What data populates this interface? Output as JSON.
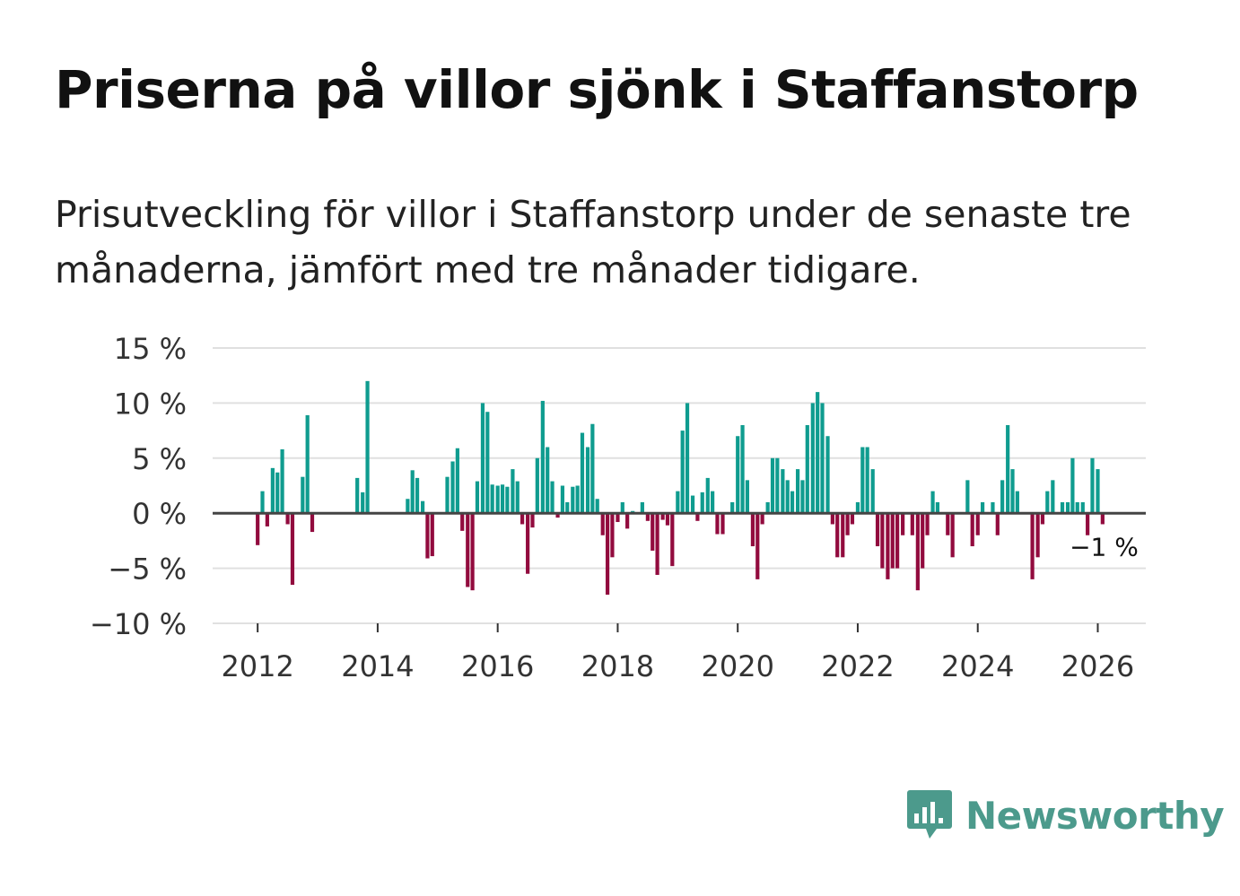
{
  "title": "Priserna på villor sjönk i Staffanstorp",
  "subtitle": "Prisutveckling för villor i Staffanstorp under de senaste tre månaderna, jämfört med tre månader tidigare.",
  "brand": {
    "name": "Newsworthy",
    "icon": "bar-chart-speech-bubble-icon",
    "color": "#4c9a8c"
  },
  "colors": {
    "positive": "#0f9c8f",
    "negative": "#920b3e",
    "zero_line": "#444444",
    "grid": "#e0e0e0"
  },
  "chart_data": {
    "type": "bar",
    "title": "Priserna på villor sjönk i Staffanstorp",
    "xlabel": "",
    "ylabel": "",
    "unit": "%",
    "ylim": [
      -10,
      15
    ],
    "yticks": [
      15,
      10,
      5,
      0,
      -5,
      -10
    ],
    "ytick_labels": [
      "15 %",
      "10 %",
      "5 %",
      "0 %",
      "−5 %",
      "−10 %"
    ],
    "xlim": [
      2011.25,
      2026.8
    ],
    "xticks": [
      2012,
      2014,
      2016,
      2018,
      2020,
      2022,
      2024,
      2026
    ],
    "xtick_labels": [
      "2012",
      "2014",
      "2016",
      "2018",
      "2020",
      "2022",
      "2024",
      "2026"
    ],
    "grid": true,
    "last_value_label": "−1 %",
    "series": [
      {
        "name": "Prisutveckling",
        "points": [
          {
            "x": 2012.0,
            "y": -2.9
          },
          {
            "x": 2012.08,
            "y": 2.0
          },
          {
            "x": 2012.16,
            "y": -1.2
          },
          {
            "x": 2012.25,
            "y": 4.1
          },
          {
            "x": 2012.33,
            "y": 3.7
          },
          {
            "x": 2012.41,
            "y": 5.8
          },
          {
            "x": 2012.5,
            "y": -1.0
          },
          {
            "x": 2012.58,
            "y": -6.5
          },
          {
            "x": 2012.75,
            "y": 3.3
          },
          {
            "x": 2012.83,
            "y": 8.9
          },
          {
            "x": 2012.91,
            "y": -1.7
          },
          {
            "x": 2013.66,
            "y": 3.2
          },
          {
            "x": 2013.75,
            "y": 1.9
          },
          {
            "x": 2013.83,
            "y": 12.0
          },
          {
            "x": 2014.5,
            "y": 1.3
          },
          {
            "x": 2014.58,
            "y": 3.9
          },
          {
            "x": 2014.66,
            "y": 3.2
          },
          {
            "x": 2014.75,
            "y": 1.1
          },
          {
            "x": 2014.83,
            "y": -4.1
          },
          {
            "x": 2014.91,
            "y": -3.9
          },
          {
            "x": 2015.16,
            "y": 3.3
          },
          {
            "x": 2015.25,
            "y": 4.7
          },
          {
            "x": 2015.33,
            "y": 5.9
          },
          {
            "x": 2015.41,
            "y": -1.6
          },
          {
            "x": 2015.5,
            "y": -6.7
          },
          {
            "x": 2015.58,
            "y": -7.0
          },
          {
            "x": 2015.66,
            "y": 2.9
          },
          {
            "x": 2015.75,
            "y": 10.0
          },
          {
            "x": 2015.83,
            "y": 9.2
          },
          {
            "x": 2015.91,
            "y": 2.6
          },
          {
            "x": 2016.0,
            "y": 2.5
          },
          {
            "x": 2016.08,
            "y": 2.6
          },
          {
            "x": 2016.16,
            "y": 2.4
          },
          {
            "x": 2016.25,
            "y": 4.0
          },
          {
            "x": 2016.33,
            "y": 2.9
          },
          {
            "x": 2016.41,
            "y": -1.0
          },
          {
            "x": 2016.5,
            "y": -5.5
          },
          {
            "x": 2016.58,
            "y": -1.3
          },
          {
            "x": 2016.66,
            "y": 5.0
          },
          {
            "x": 2016.75,
            "y": 10.2
          },
          {
            "x": 2016.83,
            "y": 6.0
          },
          {
            "x": 2016.91,
            "y": 2.9
          },
          {
            "x": 2017.0,
            "y": -0.4
          },
          {
            "x": 2017.08,
            "y": 2.5
          },
          {
            "x": 2017.16,
            "y": 1.0
          },
          {
            "x": 2017.25,
            "y": 2.4
          },
          {
            "x": 2017.33,
            "y": 2.5
          },
          {
            "x": 2017.41,
            "y": 7.3
          },
          {
            "x": 2017.5,
            "y": 6.0
          },
          {
            "x": 2017.58,
            "y": 8.1
          },
          {
            "x": 2017.66,
            "y": 1.3
          },
          {
            "x": 2017.75,
            "y": -2.0
          },
          {
            "x": 2017.83,
            "y": -7.4
          },
          {
            "x": 2017.91,
            "y": -4.0
          },
          {
            "x": 2018.0,
            "y": -0.8
          },
          {
            "x": 2018.08,
            "y": 1.0
          },
          {
            "x": 2018.16,
            "y": -1.4
          },
          {
            "x": 2018.25,
            "y": 0.2
          },
          {
            "x": 2018.41,
            "y": 1.0
          },
          {
            "x": 2018.5,
            "y": -0.7
          },
          {
            "x": 2018.58,
            "y": -3.4
          },
          {
            "x": 2018.66,
            "y": -5.6
          },
          {
            "x": 2018.75,
            "y": -0.6
          },
          {
            "x": 2018.83,
            "y": -1.1
          },
          {
            "x": 2018.91,
            "y": -4.8
          },
          {
            "x": 2019.0,
            "y": 2.0
          },
          {
            "x": 2019.08,
            "y": 7.5
          },
          {
            "x": 2019.16,
            "y": 10.0
          },
          {
            "x": 2019.25,
            "y": 1.6
          },
          {
            "x": 2019.33,
            "y": -0.7
          },
          {
            "x": 2019.41,
            "y": 1.9
          },
          {
            "x": 2019.5,
            "y": 3.2
          },
          {
            "x": 2019.58,
            "y": 2.0
          },
          {
            "x": 2019.66,
            "y": -1.9
          },
          {
            "x": 2019.75,
            "y": -1.9
          },
          {
            "x": 2019.91,
            "y": 1.0
          },
          {
            "x": 2020.0,
            "y": 7.0
          },
          {
            "x": 2020.08,
            "y": 8.0
          },
          {
            "x": 2020.16,
            "y": 3.0
          },
          {
            "x": 2020.25,
            "y": -3.0
          },
          {
            "x": 2020.33,
            "y": -6.0
          },
          {
            "x": 2020.41,
            "y": -1.0
          },
          {
            "x": 2020.5,
            "y": 1.0
          },
          {
            "x": 2020.58,
            "y": 5.0
          },
          {
            "x": 2020.66,
            "y": 5.0
          },
          {
            "x": 2020.75,
            "y": 4.0
          },
          {
            "x": 2020.83,
            "y": 3.0
          },
          {
            "x": 2020.91,
            "y": 2.0
          },
          {
            "x": 2021.0,
            "y": 4.0
          },
          {
            "x": 2021.08,
            "y": 3.0
          },
          {
            "x": 2021.16,
            "y": 8.0
          },
          {
            "x": 2021.25,
            "y": 10.0
          },
          {
            "x": 2021.33,
            "y": 11.0
          },
          {
            "x": 2021.41,
            "y": 10.0
          },
          {
            "x": 2021.5,
            "y": 7.0
          },
          {
            "x": 2021.58,
            "y": -1.0
          },
          {
            "x": 2021.66,
            "y": -4.0
          },
          {
            "x": 2021.75,
            "y": -4.0
          },
          {
            "x": 2021.83,
            "y": -2.0
          },
          {
            "x": 2021.91,
            "y": -1.0
          },
          {
            "x": 2022.0,
            "y": 1.0
          },
          {
            "x": 2022.08,
            "y": 6.0
          },
          {
            "x": 2022.16,
            "y": 6.0
          },
          {
            "x": 2022.25,
            "y": 4.0
          },
          {
            "x": 2022.33,
            "y": -3.0
          },
          {
            "x": 2022.41,
            "y": -5.0
          },
          {
            "x": 2022.5,
            "y": -6.0
          },
          {
            "x": 2022.58,
            "y": -5.0
          },
          {
            "x": 2022.66,
            "y": -5.0
          },
          {
            "x": 2022.75,
            "y": -2.0
          },
          {
            "x": 2022.91,
            "y": -2.0
          },
          {
            "x": 2023.0,
            "y": -7.0
          },
          {
            "x": 2023.08,
            "y": -5.0
          },
          {
            "x": 2023.16,
            "y": -2.0
          },
          {
            "x": 2023.25,
            "y": 2.0
          },
          {
            "x": 2023.33,
            "y": 1.0
          },
          {
            "x": 2023.5,
            "y": -2.0
          },
          {
            "x": 2023.58,
            "y": -4.0
          },
          {
            "x": 2023.83,
            "y": 3.0
          },
          {
            "x": 2023.91,
            "y": -3.0
          },
          {
            "x": 2024.0,
            "y": -2.0
          },
          {
            "x": 2024.08,
            "y": 1.0
          },
          {
            "x": 2024.25,
            "y": 1.0
          },
          {
            "x": 2024.33,
            "y": -2.0
          },
          {
            "x": 2024.41,
            "y": 3.0
          },
          {
            "x": 2024.5,
            "y": 8.0
          },
          {
            "x": 2024.58,
            "y": 4.0
          },
          {
            "x": 2024.66,
            "y": 2.0
          },
          {
            "x": 2024.91,
            "y": -6.0
          },
          {
            "x": 2025.0,
            "y": -4.0
          },
          {
            "x": 2025.08,
            "y": -1.0
          },
          {
            "x": 2025.16,
            "y": 2.0
          },
          {
            "x": 2025.25,
            "y": 3.0
          },
          {
            "x": 2025.41,
            "y": 1.0
          },
          {
            "x": 2025.5,
            "y": 1.0
          },
          {
            "x": 2025.58,
            "y": 5.0
          },
          {
            "x": 2025.66,
            "y": 1.0
          },
          {
            "x": 2025.75,
            "y": 1.0
          },
          {
            "x": 2025.83,
            "y": -2.0
          },
          {
            "x": 2025.91,
            "y": 5.0
          },
          {
            "x": 2026.0,
            "y": 4.0
          },
          {
            "x": 2026.08,
            "y": -1.0
          }
        ]
      }
    ]
  }
}
